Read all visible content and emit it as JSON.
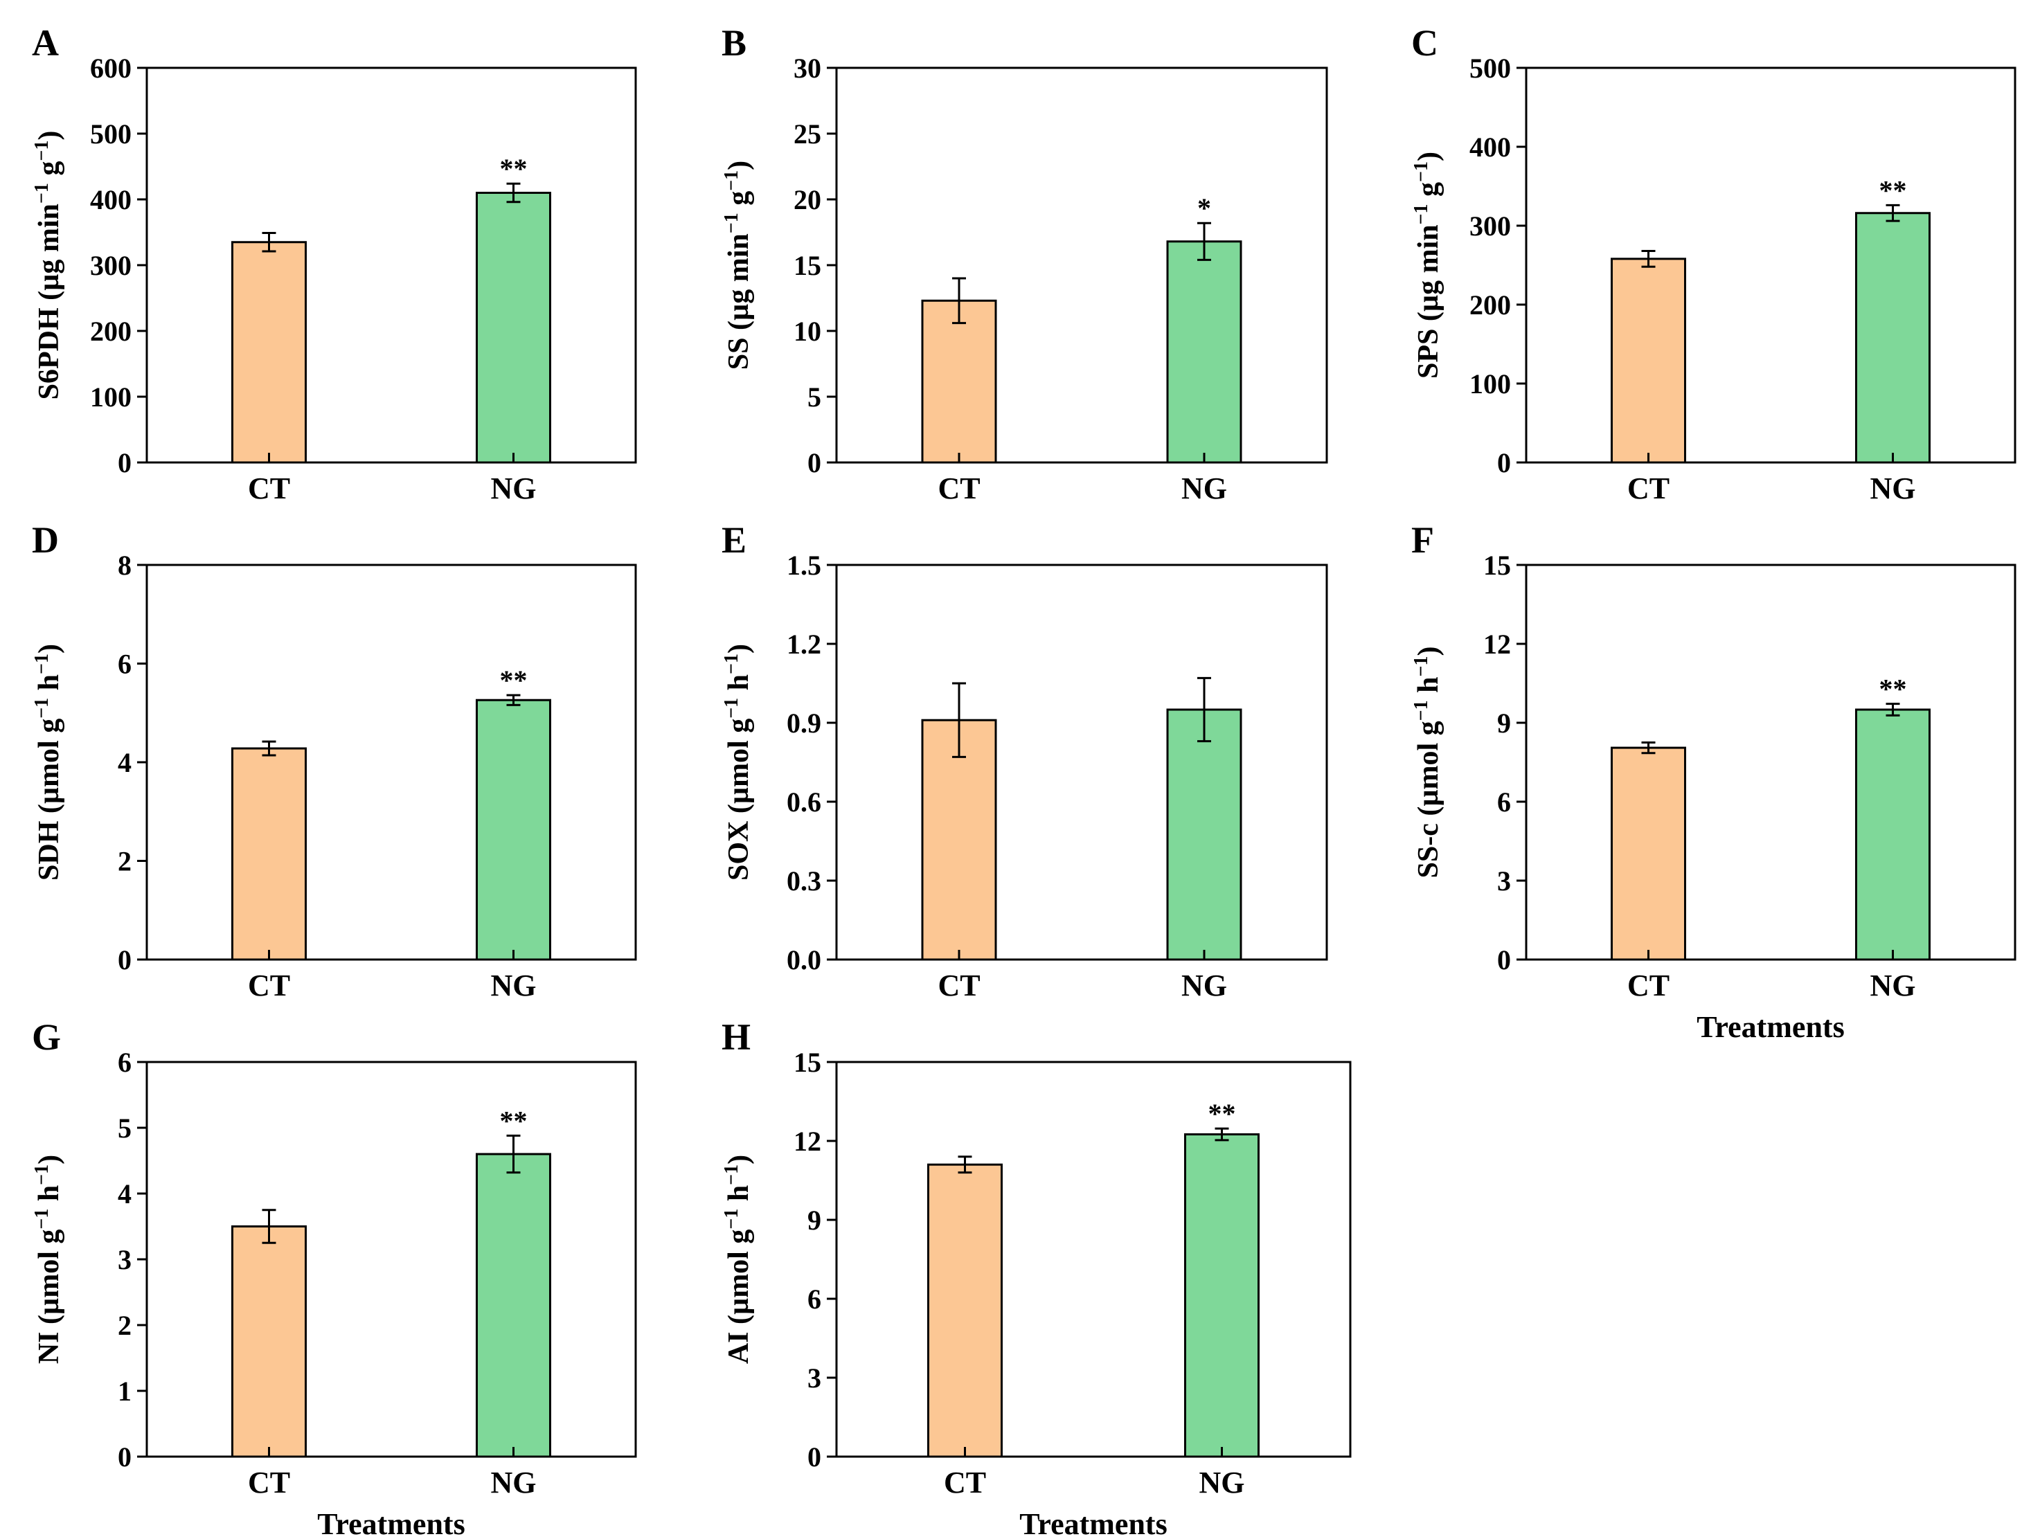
{
  "chart_data": [
    {
      "type": "bar",
      "panel": "A",
      "categories": [
        "CT",
        "NG"
      ],
      "values": [
        335,
        410
      ],
      "errors": [
        14,
        14
      ],
      "significance": [
        "",
        "**"
      ],
      "colors": [
        "#fcc794",
        "#7fd899"
      ],
      "ylabel": "S6PDH (µg min⁻¹ g⁻¹)",
      "ylabel_parts": [
        [
          "S6PDH (µg min",
          ""
        ],
        [
          "−1",
          "sup"
        ],
        [
          " g",
          ""
        ],
        [
          "−1",
          "sup"
        ],
        [
          ")",
          ""
        ]
      ],
      "xlabel": "",
      "ylim": [
        0,
        600
      ],
      "yticks": [
        0,
        100,
        200,
        300,
        400,
        500,
        600
      ],
      "ytick_labels": [
        "0",
        "100",
        "200",
        "300",
        "400",
        "500",
        "600"
      ]
    },
    {
      "type": "bar",
      "panel": "B",
      "categories": [
        "CT",
        "NG"
      ],
      "values": [
        12.3,
        16.8
      ],
      "errors": [
        1.7,
        1.4
      ],
      "significance": [
        "",
        "*"
      ],
      "colors": [
        "#fcc794",
        "#7fd899"
      ],
      "ylabel": "SS (µg min⁻¹ g⁻¹)",
      "ylabel_parts": [
        [
          "SS (µg min",
          ""
        ],
        [
          "−1",
          "sup"
        ],
        [
          " g",
          ""
        ],
        [
          "−1",
          "sup"
        ],
        [
          ")",
          ""
        ]
      ],
      "xlabel": "",
      "ylim": [
        0,
        30
      ],
      "yticks": [
        0,
        5,
        10,
        15,
        20,
        25,
        30
      ],
      "ytick_labels": [
        "0",
        "5",
        "10",
        "15",
        "20",
        "25",
        "30"
      ]
    },
    {
      "type": "bar",
      "panel": "C",
      "categories": [
        "CT",
        "NG"
      ],
      "values": [
        258,
        316
      ],
      "errors": [
        10,
        10
      ],
      "significance": [
        "",
        "**"
      ],
      "colors": [
        "#fcc794",
        "#7fd899"
      ],
      "ylabel": "SPS (µg min⁻¹ g⁻¹)",
      "ylabel_parts": [
        [
          "SPS (µg min",
          ""
        ],
        [
          "−1",
          "sup"
        ],
        [
          " g",
          ""
        ],
        [
          "−1",
          "sup"
        ],
        [
          ")",
          ""
        ]
      ],
      "xlabel": "",
      "ylim": [
        0,
        500
      ],
      "yticks": [
        0,
        100,
        200,
        300,
        400,
        500
      ],
      "ytick_labels": [
        "0",
        "100",
        "200",
        "300",
        "400",
        "500"
      ]
    },
    {
      "type": "bar",
      "panel": "D",
      "categories": [
        "CT",
        "NG"
      ],
      "values": [
        4.28,
        5.26
      ],
      "errors": [
        0.14,
        0.1
      ],
      "significance": [
        "",
        "**"
      ],
      "colors": [
        "#fcc794",
        "#7fd899"
      ],
      "ylabel": "SDH (µmol g⁻¹ h⁻¹)",
      "ylabel_parts": [
        [
          "SDH (µmol g",
          ""
        ],
        [
          "−1",
          "sup"
        ],
        [
          " h",
          ""
        ],
        [
          "−1",
          "sup"
        ],
        [
          ")",
          ""
        ]
      ],
      "xlabel": "",
      "ylim": [
        0,
        8
      ],
      "yticks": [
        0,
        2,
        4,
        6,
        8
      ],
      "ytick_labels": [
        "0",
        "2",
        "4",
        "6",
        "8"
      ]
    },
    {
      "type": "bar",
      "panel": "E",
      "categories": [
        "CT",
        "NG"
      ],
      "values": [
        0.91,
        0.95
      ],
      "errors": [
        0.14,
        0.12
      ],
      "significance": [
        "",
        ""
      ],
      "colors": [
        "#fcc794",
        "#7fd899"
      ],
      "ylabel": "SOX (µmol g⁻¹ h⁻¹)",
      "ylabel_parts": [
        [
          "SOX (µmol g",
          ""
        ],
        [
          "−1",
          "sup"
        ],
        [
          " h",
          ""
        ],
        [
          "−1",
          "sup"
        ],
        [
          ")",
          ""
        ]
      ],
      "xlabel": "",
      "ylim": [
        0,
        1.5
      ],
      "yticks": [
        0,
        0.3,
        0.6,
        0.9,
        1.2,
        1.5
      ],
      "ytick_labels": [
        "0.0",
        "0.3",
        "0.6",
        "0.9",
        "1.2",
        "1.5"
      ]
    },
    {
      "type": "bar",
      "panel": "F",
      "categories": [
        "CT",
        "NG"
      ],
      "values": [
        8.05,
        9.5
      ],
      "errors": [
        0.2,
        0.22
      ],
      "significance": [
        "",
        "**"
      ],
      "colors": [
        "#fcc794",
        "#7fd899"
      ],
      "ylabel": "SS-c (µmol g⁻¹ h⁻¹)",
      "ylabel_parts": [
        [
          "SS-c (µmol g",
          ""
        ],
        [
          "−1",
          "sup"
        ],
        [
          " h",
          ""
        ],
        [
          "−1",
          "sup"
        ],
        [
          ")",
          ""
        ]
      ],
      "xlabel": "Treatments",
      "ylim": [
        0,
        15
      ],
      "yticks": [
        0,
        3,
        6,
        9,
        12,
        15
      ],
      "ytick_labels": [
        "0",
        "3",
        "6",
        "9",
        "12",
        "15"
      ]
    },
    {
      "type": "bar",
      "panel": "G",
      "categories": [
        "CT",
        "NG"
      ],
      "values": [
        3.5,
        4.6
      ],
      "errors": [
        0.25,
        0.28
      ],
      "significance": [
        "",
        "**"
      ],
      "colors": [
        "#fcc794",
        "#7fd899"
      ],
      "ylabel": "NI (µmol g⁻¹ h⁻¹)",
      "ylabel_parts": [
        [
          "NI (µmol g",
          ""
        ],
        [
          "−1",
          "sup"
        ],
        [
          " h",
          ""
        ],
        [
          "−1",
          "sup"
        ],
        [
          ")",
          ""
        ]
      ],
      "xlabel": "Treatments",
      "ylim": [
        0,
        6
      ],
      "yticks": [
        0,
        1,
        2,
        3,
        4,
        5,
        6
      ],
      "ytick_labels": [
        "0",
        "1",
        "2",
        "3",
        "4",
        "5",
        "6"
      ]
    },
    {
      "type": "bar",
      "panel": "H",
      "categories": [
        "CT",
        "NG"
      ],
      "values": [
        11.1,
        12.25
      ],
      "errors": [
        0.3,
        0.22
      ],
      "significance": [
        "",
        "**"
      ],
      "colors": [
        "#fcc794",
        "#7fd899"
      ],
      "ylabel": "AI (µmol g⁻¹ h⁻¹)",
      "ylabel_parts": [
        [
          "AI (µmol g",
          ""
        ],
        [
          "−1",
          "sup"
        ],
        [
          " h",
          ""
        ],
        [
          "−1",
          "sup"
        ],
        [
          ")",
          ""
        ]
      ],
      "xlabel": "Treatments",
      "ylim": [
        0,
        15
      ],
      "yticks": [
        0,
        3,
        6,
        9,
        12,
        15
      ],
      "ytick_labels": [
        "0",
        "3",
        "6",
        "9",
        "12",
        "15"
      ]
    }
  ]
}
